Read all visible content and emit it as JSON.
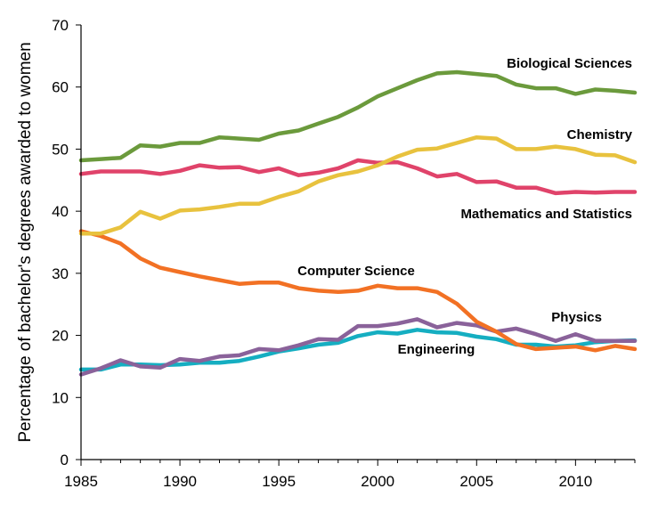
{
  "chart_data": {
    "type": "line",
    "title": "",
    "xlabel": "",
    "ylabel": "Percentage of bachelor's degrees awarded to women",
    "xlim": [
      1985,
      2013
    ],
    "ylim": [
      0,
      70
    ],
    "xticks": [
      1985,
      1990,
      1995,
      2000,
      2005,
      2010
    ],
    "yticks": [
      0,
      10,
      20,
      30,
      40,
      50,
      60,
      70
    ],
    "grid": false,
    "x": [
      1985,
      1986,
      1987,
      1988,
      1989,
      1990,
      1991,
      1992,
      1993,
      1994,
      1995,
      1996,
      1997,
      1998,
      1999,
      2000,
      2001,
      2002,
      2003,
      2004,
      2005,
      2006,
      2007,
      2008,
      2009,
      2010,
      2011,
      2012,
      2013
    ],
    "series": [
      {
        "name": "Biological Sciences",
        "color": "#6b9a3c",
        "values": [
          48.2,
          48.4,
          48.6,
          50.6,
          50.4,
          51.0,
          51.0,
          51.9,
          51.7,
          51.5,
          52.5,
          53.0,
          54.1,
          55.2,
          56.7,
          58.5,
          59.8,
          61.1,
          62.2,
          62.4,
          62.1,
          61.8,
          60.4,
          59.8,
          59.8,
          58.9,
          59.6,
          59.4,
          59.1
        ]
      },
      {
        "name": "Chemistry",
        "color": "#e8c23e",
        "values": [
          36.4,
          36.4,
          37.4,
          39.9,
          38.8,
          40.1,
          40.3,
          40.7,
          41.2,
          41.2,
          42.3,
          43.2,
          44.8,
          45.8,
          46.4,
          47.4,
          48.8,
          49.9,
          50.1,
          51.0,
          51.9,
          51.7,
          50.0,
          50.0,
          50.4,
          50.0,
          49.1,
          49.0,
          47.9
        ]
      },
      {
        "name": "Mathematics and Statistics",
        "color": "#e0436a",
        "values": [
          46.0,
          46.4,
          46.4,
          46.4,
          46.0,
          46.5,
          47.4,
          47.0,
          47.1,
          46.3,
          46.9,
          45.8,
          46.2,
          46.9,
          48.2,
          47.8,
          47.9,
          46.9,
          45.6,
          46.0,
          44.7,
          44.8,
          43.8,
          43.8,
          42.9,
          43.1,
          43.0,
          43.1,
          43.1
        ]
      },
      {
        "name": "Computer Science",
        "color": "#f27124",
        "values": [
          36.8,
          36.0,
          34.8,
          32.4,
          30.9,
          30.2,
          29.5,
          28.9,
          28.3,
          28.5,
          28.5,
          27.6,
          27.2,
          27.0,
          27.2,
          28.0,
          27.6,
          27.6,
          27.0,
          25.1,
          22.2,
          20.6,
          18.6,
          17.8,
          18.0,
          18.2,
          17.6,
          18.3,
          17.8
        ]
      },
      {
        "name": "Physics",
        "color": "#8a629a",
        "values": [
          13.7,
          14.7,
          16.0,
          15.0,
          14.8,
          16.2,
          15.9,
          16.6,
          16.8,
          17.8,
          17.6,
          18.4,
          19.4,
          19.3,
          21.5,
          21.5,
          21.9,
          22.6,
          21.3,
          22.0,
          21.6,
          20.6,
          21.1,
          20.2,
          19.1,
          20.2,
          19.1,
          19.1,
          19.1
        ]
      },
      {
        "name": "Engineering",
        "color": "#15aec1",
        "values": [
          14.5,
          14.5,
          15.3,
          15.3,
          15.2,
          15.3,
          15.6,
          15.6,
          15.9,
          16.6,
          17.4,
          17.9,
          18.5,
          18.8,
          19.9,
          20.5,
          20.3,
          20.9,
          20.5,
          20.4,
          19.8,
          19.4,
          18.5,
          18.5,
          18.2,
          18.4,
          18.9,
          19.1,
          19.2
        ]
      }
    ]
  }
}
